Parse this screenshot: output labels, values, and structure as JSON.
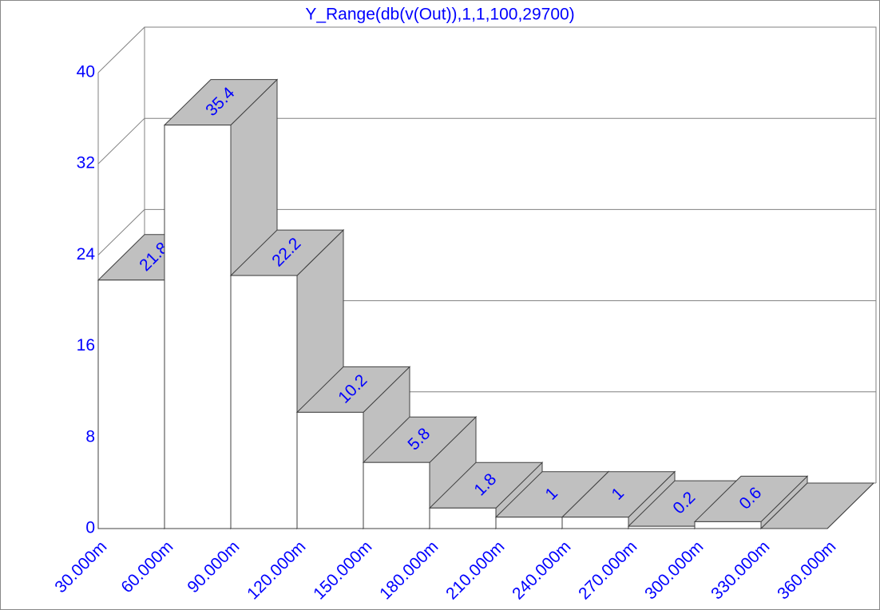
{
  "chart_data": {
    "type": "histogram3d",
    "title": "Y_Range(db(v(Out)),1,1,100,29700)",
    "bins": [
      0.03,
      0.06,
      0.09,
      0.12,
      0.15,
      0.18,
      0.21,
      0.24,
      0.27,
      0.3,
      0.33,
      0.36
    ],
    "values": [
      21.8,
      35.4,
      22.2,
      10.2,
      5.8,
      1.8,
      1,
      1,
      0.2,
      0.6,
      0
    ],
    "value_labels": [
      "21.8",
      "35.4",
      "22.2",
      "10.2",
      "5.8",
      "1.8",
      "1",
      "1",
      "0.2",
      "0.6",
      null
    ],
    "xlim": [
      0.03,
      0.36
    ],
    "xticks": [
      {
        "value": 0.03,
        "label": "30.000m"
      },
      {
        "value": 0.06,
        "label": "60.000m"
      },
      {
        "value": 0.09,
        "label": "90.000m"
      },
      {
        "value": 0.12,
        "label": "120.000m"
      },
      {
        "value": 0.15,
        "label": "150.000m"
      },
      {
        "value": 0.18,
        "label": "180.000m"
      },
      {
        "value": 0.21,
        "label": "210.000m"
      },
      {
        "value": 0.24,
        "label": "240.000m"
      },
      {
        "value": 0.27,
        "label": "270.000m"
      },
      {
        "value": 0.3,
        "label": "300.000m"
      },
      {
        "value": 0.33,
        "label": "330.000m"
      },
      {
        "value": 0.36,
        "label": "360.000m"
      }
    ],
    "ylim": [
      0,
      40
    ],
    "yticks": [
      0,
      8,
      16,
      24,
      32,
      40
    ],
    "grid": true,
    "bar_color": "#ffffff",
    "face_color": "#c0c0c0",
    "text_color": "#0000ff"
  }
}
